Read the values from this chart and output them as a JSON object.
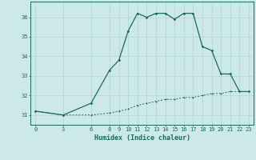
{
  "xlabel": "Humidex (Indice chaleur)",
  "ylabel": "",
  "bg_color": "#cce9e7",
  "grid_color": "#b0d4d2",
  "line_color": "#1a6b5a",
  "x_main": [
    0,
    3,
    6,
    8,
    9,
    10,
    11,
    12,
    13,
    14,
    15,
    16,
    17,
    18,
    19,
    20,
    21,
    22,
    23
  ],
  "y_main": [
    31.2,
    31.0,
    31.6,
    33.3,
    33.8,
    35.3,
    36.2,
    36.0,
    36.2,
    36.2,
    35.9,
    36.2,
    36.2,
    34.5,
    34.3,
    33.1,
    33.1,
    32.2,
    32.2
  ],
  "x_dashed": [
    0,
    3,
    6,
    8,
    9,
    10,
    11,
    12,
    13,
    14,
    15,
    16,
    17,
    18,
    19,
    20,
    21,
    22,
    23
  ],
  "y_dashed": [
    31.2,
    31.0,
    31.0,
    31.1,
    31.2,
    31.3,
    31.5,
    31.6,
    31.7,
    31.8,
    31.8,
    31.9,
    31.9,
    32.0,
    32.1,
    32.1,
    32.2,
    32.2,
    32.2
  ],
  "xticks": [
    0,
    3,
    6,
    8,
    9,
    10,
    11,
    12,
    13,
    14,
    15,
    16,
    17,
    18,
    19,
    20,
    21,
    22,
    23
  ],
  "yticks": [
    31,
    32,
    33,
    34,
    35,
    36
  ],
  "ylim": [
    30.5,
    36.8
  ],
  "xlim": [
    -0.5,
    23.5
  ],
  "font_size_tick": 5.0,
  "font_size_xlabel": 6.0
}
